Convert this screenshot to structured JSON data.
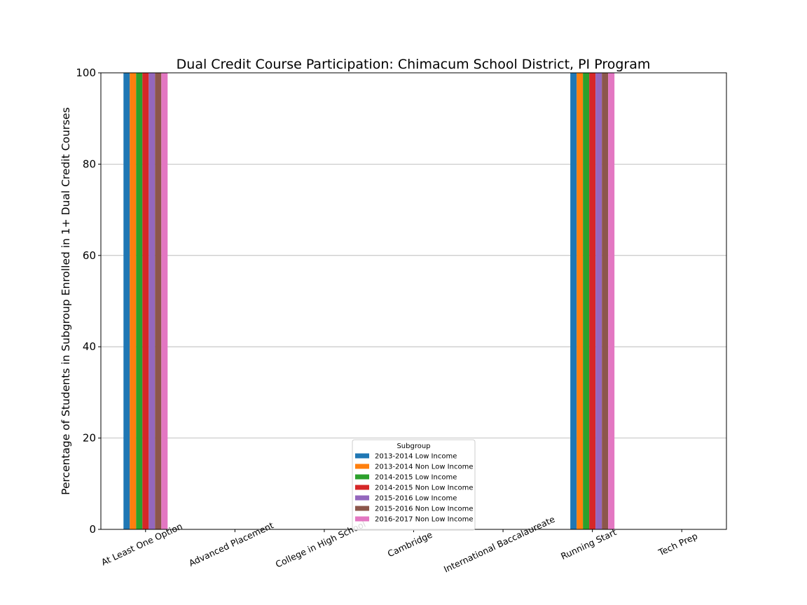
{
  "chart_data": {
    "type": "bar",
    "title": "Dual Credit Course Participation: Chimacum School District, PI Program",
    "xlabel": "",
    "ylabel": "Percentage of Students in Subgroup Enrolled in 1+ Dual Credit Courses",
    "ylim": [
      0,
      100
    ],
    "yticks": [
      "0",
      "20",
      "40",
      "60",
      "80",
      "100"
    ],
    "grid": "horizontal",
    "categories": [
      "At Least One Option",
      "Advanced Placement",
      "College in High School",
      "Cambridge",
      "International Baccalaureate",
      "Running Start",
      "Tech Prep"
    ],
    "legend": {
      "title": "Subgroup",
      "placement": "lower-center"
    },
    "series": [
      {
        "name": "2013-2014 Low Income",
        "color": "#1f77b4",
        "values": [
          100,
          0,
          0,
          0,
          0,
          100,
          0
        ]
      },
      {
        "name": "2013-2014 Non Low Income",
        "color": "#ff7f0e",
        "values": [
          100,
          0,
          0,
          0,
          0,
          100,
          0
        ]
      },
      {
        "name": "2014-2015 Low Income",
        "color": "#2ca02c",
        "values": [
          100,
          0,
          0,
          0,
          0,
          100,
          0
        ]
      },
      {
        "name": "2014-2015 Non Low Income",
        "color": "#d62728",
        "values": [
          100,
          0,
          0,
          0,
          0,
          100,
          0
        ]
      },
      {
        "name": "2015-2016 Low Income",
        "color": "#9467bd",
        "values": [
          100,
          0,
          0,
          0,
          0,
          100,
          0
        ]
      },
      {
        "name": "2015-2016 Non Low Income",
        "color": "#8c564b",
        "values": [
          100,
          0,
          0,
          0,
          0,
          100,
          0
        ]
      },
      {
        "name": "2016-2017 Non Low Income",
        "color": "#e377c2",
        "values": [
          100,
          0,
          0,
          0,
          0,
          100,
          0
        ]
      }
    ]
  }
}
